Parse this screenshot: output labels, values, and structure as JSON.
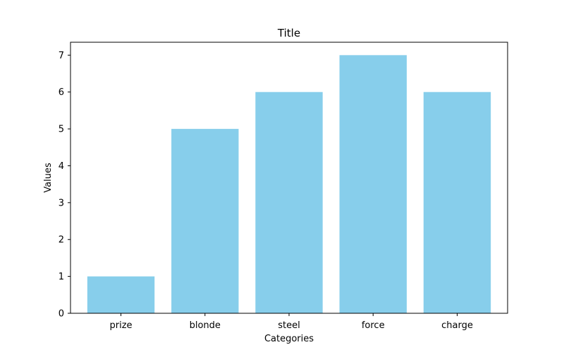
{
  "chart_data": {
    "type": "bar",
    "title": "Title",
    "xlabel": "Categories",
    "ylabel": "Values",
    "categories": [
      "prize",
      "blonde",
      "steel",
      "force",
      "charge"
    ],
    "values": [
      1,
      5,
      6,
      7,
      6
    ],
    "ylim": [
      0,
      7.35
    ],
    "yticks": [
      "0",
      "1",
      "2",
      "3",
      "4",
      "5",
      "6",
      "7"
    ],
    "grid": false,
    "legend": "none",
    "bar_color": "#87CEEB",
    "axis_color": "#000000"
  }
}
